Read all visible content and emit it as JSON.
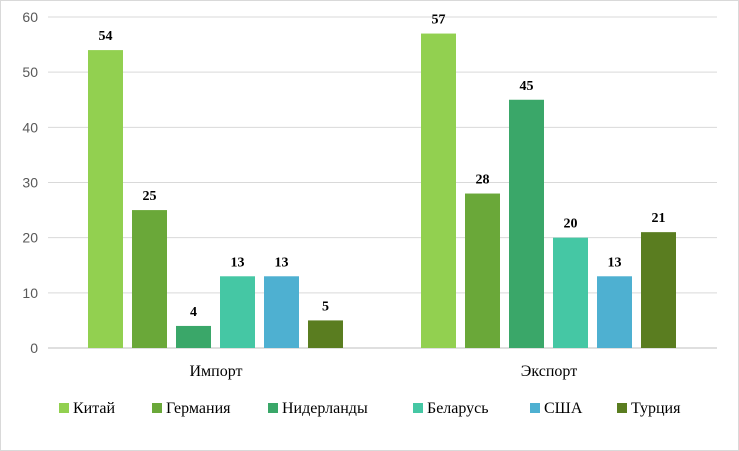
{
  "chart_data": {
    "type": "bar",
    "categories": [
      "Импорт",
      "Экспорт"
    ],
    "series": [
      {
        "name": "Китай",
        "color": "#92d050",
        "values": [
          54,
          57
        ]
      },
      {
        "name": "Германия",
        "color": "#6aa839",
        "values": [
          25,
          28
        ]
      },
      {
        "name": "Нидерланды",
        "color": "#3aa769",
        "values": [
          4,
          45
        ]
      },
      {
        "name": "Беларусь",
        "color": "#45c7a4",
        "values": [
          13,
          20
        ]
      },
      {
        "name": "США",
        "color": "#4eb0d1",
        "values": [
          13,
          13
        ]
      },
      {
        "name": "Турция",
        "color": "#5a7d20",
        "values": [
          5,
          21
        ]
      }
    ],
    "ylim": [
      0,
      60
    ],
    "yticks": [
      0,
      10,
      20,
      30,
      40,
      50,
      60
    ],
    "grid": true,
    "legend": "bottom",
    "data_labels": true
  }
}
